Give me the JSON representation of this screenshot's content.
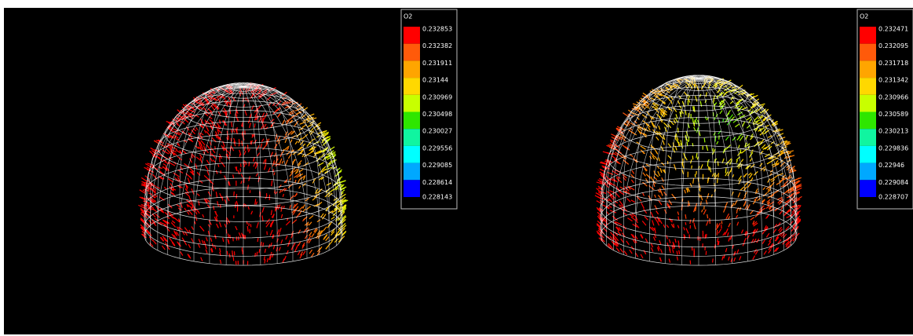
{
  "panels": [
    {
      "legend": {
        "title": "O2",
        "labels": [
          "0.232853",
          "0.232382",
          "0.231911",
          "0.23144",
          "0.230969",
          "0.230498",
          "0.230027",
          "0.229556",
          "0.229085",
          "0.228614",
          "0.228143"
        ],
        "colors": [
          "#ff0000",
          "#ff5a0a",
          "#ffa500",
          "#ffd800",
          "#c8ff00",
          "#2ee600",
          "#10f5a0",
          "#00ffff",
          "#00a8ff",
          "#0000ff"
        ]
      }
    },
    {
      "legend": {
        "title": "O2",
        "labels": [
          "0.232471",
          "0.232095",
          "0.231718",
          "0.231342",
          "0.230966",
          "0.230589",
          "0.230213",
          "0.229836",
          "0.22946",
          "0.229084",
          "0.228707"
        ],
        "colors": [
          "#ff0000",
          "#ff5a0a",
          "#ffa500",
          "#ffd800",
          "#c8ff00",
          "#2ee600",
          "#10f5a0",
          "#00ffff",
          "#00a8ff",
          "#0000ff"
        ]
      }
    }
  ]
}
